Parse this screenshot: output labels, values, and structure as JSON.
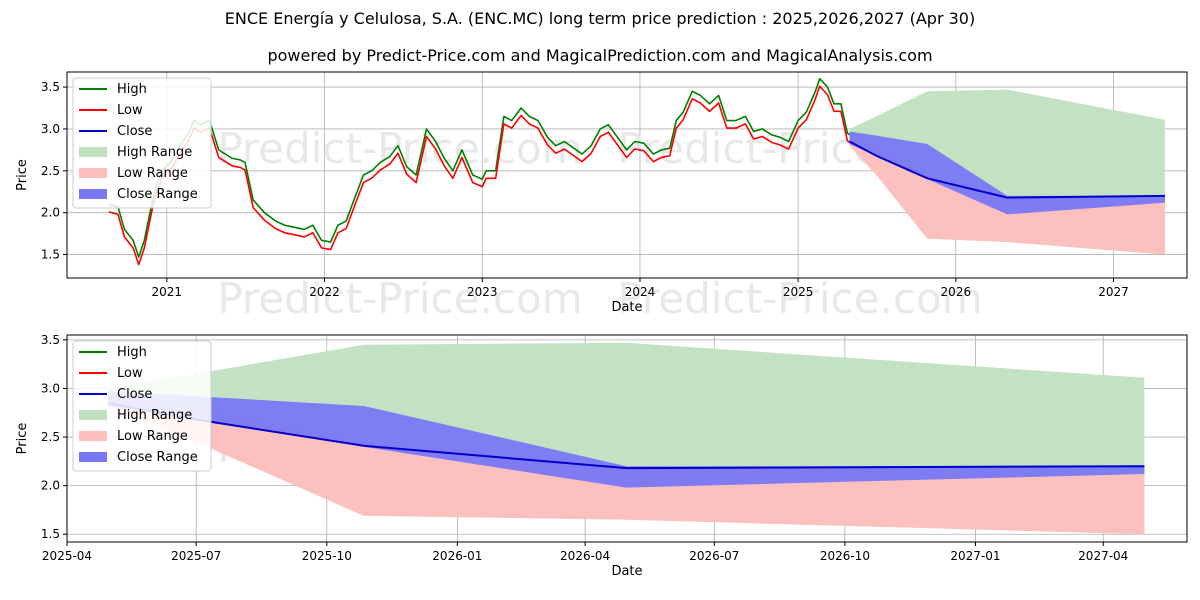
{
  "title": "ENCE Energía y Celulosa, S.A. (ENC.MC) long term price prediction : 2025,2026,2027 (Apr 30)",
  "subtitle": "powered by Predict-Price.com and MagicalPrediction.com and MagicalAnalysis.com",
  "watermark": "Predict-Price.com",
  "colors": {
    "high": "#008000",
    "low": "#ff0000",
    "close": "#0000cd",
    "high_range": "#c0e0c0",
    "low_range": "#ffbebe",
    "close_range": "#7878f5"
  },
  "legend": [
    "High",
    "Low",
    "Close",
    "High Range",
    "Low Range",
    "Close Range"
  ],
  "chart_data": [
    {
      "type": "line",
      "xlabel": "Date",
      "ylabel": "Price",
      "xlim": [
        "2020-05-15",
        "2027-06-20"
      ],
      "ylim": [
        1.22,
        3.68
      ],
      "x_ticks": [
        "2021",
        "2022",
        "2023",
        "2024",
        "2025",
        "2026",
        "2027"
      ],
      "y_ticks": [
        "1.5",
        "2.0",
        "2.5",
        "3.0",
        "3.5"
      ],
      "legend_position": "upper-left",
      "grid": true,
      "history": {
        "x": [
          "2020-08-20",
          "2020-09-10",
          "2020-09-25",
          "2020-10-15",
          "2020-10-28",
          "2020-11-10",
          "2020-12-01",
          "2020-12-20",
          "2021-01-10",
          "2021-02-01",
          "2021-02-20",
          "2021-03-05",
          "2021-03-20",
          "2021-04-10",
          "2021-05-01",
          "2021-06-01",
          "2021-06-20",
          "2021-07-01",
          "2021-07-20",
          "2021-08-15",
          "2021-09-10",
          "2021-10-01",
          "2021-10-20",
          "2021-11-15",
          "2021-12-05",
          "2021-12-25",
          "2022-01-15",
          "2022-02-01",
          "2022-02-20",
          "2022-03-10",
          "2022-04-01",
          "2022-04-20",
          "2022-05-10",
          "2022-06-01",
          "2022-06-20",
          "2022-07-10",
          "2022-08-01",
          "2022-08-25",
          "2022-09-15",
          "2022-10-05",
          "2022-10-25",
          "2022-11-15",
          "2022-12-10",
          "2023-01-01",
          "2023-01-10",
          "2023-02-01",
          "2023-02-20",
          "2023-03-10",
          "2023-04-01",
          "2023-04-20",
          "2023-05-10",
          "2023-06-01",
          "2023-06-20",
          "2023-07-10",
          "2023-08-01",
          "2023-08-20",
          "2023-09-10",
          "2023-10-01",
          "2023-10-20",
          "2023-11-10",
          "2023-12-01",
          "2023-12-20",
          "2024-01-10",
          "2024-02-01",
          "2024-02-20",
          "2024-03-10",
          "2024-03-25",
          "2024-04-10",
          "2024-05-01",
          "2024-05-20",
          "2024-06-10",
          "2024-07-01",
          "2024-07-20",
          "2024-08-10",
          "2024-09-01",
          "2024-09-20",
          "2024-10-10",
          "2024-11-01",
          "2024-11-20",
          "2024-12-10",
          "2025-01-01",
          "2025-01-20",
          "2025-02-10",
          "2025-02-20",
          "2025-03-10",
          "2025-03-25",
          "2025-04-10",
          "2025-04-25",
          "2025-04-30"
        ],
        "close": [
          2.05,
          2.02,
          1.75,
          1.62,
          1.42,
          1.62,
          2.15,
          2.45,
          2.55,
          2.75,
          2.9,
          3.05,
          3.0,
          3.05,
          2.7,
          2.6,
          2.58,
          2.55,
          2.1,
          1.95,
          1.85,
          1.8,
          1.78,
          1.75,
          1.8,
          1.62,
          1.6,
          1.8,
          1.85,
          2.1,
          2.4,
          2.45,
          2.55,
          2.62,
          2.75,
          2.5,
          2.4,
          2.95,
          2.8,
          2.6,
          2.45,
          2.7,
          2.4,
          2.35,
          2.45,
          2.45,
          3.1,
          3.05,
          3.2,
          3.1,
          3.05,
          2.85,
          2.75,
          2.8,
          2.72,
          2.65,
          2.75,
          2.95,
          3.0,
          2.85,
          2.7,
          2.8,
          2.78,
          2.65,
          2.7,
          2.72,
          3.05,
          3.15,
          3.4,
          3.35,
          3.25,
          3.35,
          3.05,
          3.05,
          3.1,
          2.92,
          2.95,
          2.88,
          2.85,
          2.8,
          3.05,
          3.15,
          3.4,
          3.55,
          3.45,
          3.25,
          3.25,
          2.9,
          2.88
        ]
      },
      "forecast": {
        "x": [
          "2025-04-30",
          "2025-07-01",
          "2025-10-27",
          "2026-04-30",
          "2027-04-30"
        ],
        "high_range": {
          "upper": [
            3.0,
            3.15,
            3.45,
            3.47,
            3.11
          ],
          "lower": [
            2.8,
            2.45,
            1.69,
            1.65,
            1.5
          ]
        },
        "low_range": {
          "upper": [
            2.95,
            2.8,
            2.45,
            2.2,
            2.13
          ],
          "lower": [
            2.8,
            2.45,
            1.69,
            1.65,
            1.5
          ]
        },
        "close_range": {
          "upper": [
            2.97,
            2.92,
            2.82,
            2.2,
            2.2
          ],
          "lower": [
            2.82,
            2.68,
            2.4,
            1.98,
            2.12
          ]
        },
        "close": [
          2.85,
          2.68,
          2.41,
          2.18,
          2.2
        ]
      }
    },
    {
      "type": "area",
      "xlabel": "Date",
      "ylabel": "Price",
      "xlim": [
        "2025-04-01",
        "2027-05-30"
      ],
      "ylim": [
        1.42,
        3.55
      ],
      "x_ticks": [
        "2025-04",
        "2025-07",
        "2025-10",
        "2026-01",
        "2026-04",
        "2026-07",
        "2026-10",
        "2027-01",
        "2027-04"
      ],
      "y_ticks": [
        "1.5",
        "2.0",
        "2.5",
        "3.0",
        "3.5"
      ],
      "legend_position": "upper-left",
      "grid": true,
      "forecast": {
        "x": [
          "2025-04-30",
          "2025-07-01",
          "2025-10-27",
          "2026-04-30",
          "2027-04-30"
        ],
        "high_range": {
          "upper": [
            3.0,
            3.15,
            3.45,
            3.47,
            3.11
          ],
          "lower": [
            2.8,
            2.45,
            1.69,
            1.65,
            1.5
          ]
        },
        "low_range": {
          "upper": [
            2.95,
            2.8,
            2.45,
            2.2,
            2.13
          ],
          "lower": [
            2.8,
            2.45,
            1.69,
            1.65,
            1.5
          ]
        },
        "close_range": {
          "upper": [
            2.97,
            2.92,
            2.82,
            2.2,
            2.2
          ],
          "lower": [
            2.82,
            2.68,
            2.4,
            1.98,
            2.12
          ]
        },
        "close": [
          2.85,
          2.68,
          2.41,
          2.18,
          2.2
        ]
      }
    }
  ]
}
